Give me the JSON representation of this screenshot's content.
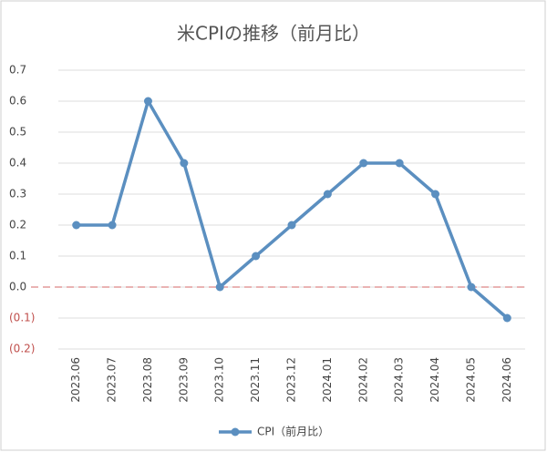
{
  "chart_data": {
    "type": "line",
    "title": "米CPIの推移（前月比）",
    "categories": [
      "2023.06",
      "2023.07",
      "2023.08",
      "2023.09",
      "2023.10",
      "2023.11",
      "2023.12",
      "2024.01",
      "2024.02",
      "2024.03",
      "2024.04",
      "2024.05",
      "2024.06"
    ],
    "series": [
      {
        "name": "CPI（前月比）",
        "color": "#5b8fc0",
        "values": [
          0.2,
          0.2,
          0.6,
          0.4,
          0.0,
          0.1,
          0.2,
          0.3,
          0.4,
          0.4,
          0.3,
          0.0,
          -0.1
        ]
      }
    ],
    "ylim": [
      -0.2,
      0.7
    ],
    "yticks": [
      0.7,
      0.6,
      0.5,
      0.4,
      0.3,
      0.2,
      0.1,
      {
        "value": 0,
        "label": "0.0"
      },
      {
        "value": -0.1,
        "label": "(0.1)"
      },
      {
        "value": -0.2,
        "label": "(0.2)"
      }
    ],
    "grid": true,
    "negative_label_color": "#c0504d",
    "legend": "bottom"
  }
}
